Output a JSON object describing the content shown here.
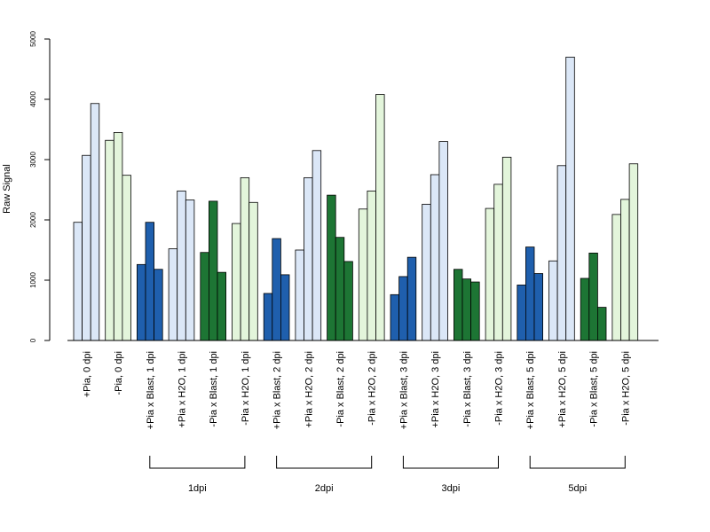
{
  "chart_data": {
    "type": "bar",
    "ylabel": "Raw Signal",
    "ylim": [
      0,
      5000
    ],
    "yticks": [
      0,
      1000,
      2000,
      3000,
      4000,
      5000
    ],
    "categories": [
      "+Pia, 0 dpi",
      "-Pia, 0 dpi",
      "+Pia x Blast, 1 dpi",
      "+Pia x H2O, 1 dpi",
      "-Pia x Blast, 1 dpi",
      "-Pia x H2O, 1 dpi",
      "+Pia x Blast, 2 dpi",
      "+Pia x H2O, 2 dpi",
      "-Pia x Blast, 2 dpi",
      "-Pia x H2O, 2 dpi",
      "+Pia x Blast, 3 dpi",
      "+Pia x H2O, 3 dpi",
      "-Pia x Blast, 3 dpi",
      "-Pia x H2O, 3 dpi",
      "+Pia x Blast, 5 dpi",
      "+Pia x H2O, 5 dpi",
      "-Pia x Blast, 5 dpi",
      "-Pia x H2O, 5 dpi"
    ],
    "category_colors": [
      "#dbe7f7",
      "#e3f5db",
      "#1f5fad",
      "#dbe7f7",
      "#1d7534",
      "#e3f5db",
      "#1f5fad",
      "#dbe7f7",
      "#1d7534",
      "#e3f5db",
      "#1f5fad",
      "#dbe7f7",
      "#1d7534",
      "#e3f5db",
      "#1f5fad",
      "#dbe7f7",
      "#1d7534",
      "#e3f5db"
    ],
    "values": [
      [
        1960,
        3070,
        3930
      ],
      [
        3320,
        3450,
        2740
      ],
      [
        1260,
        1960,
        1180
      ],
      [
        1520,
        2480,
        2330
      ],
      [
        1460,
        2310,
        1130
      ],
      [
        1940,
        2700,
        2290
      ],
      [
        780,
        1690,
        1090
      ],
      [
        1500,
        2700,
        3150
      ],
      [
        2410,
        1710,
        1310
      ],
      [
        2180,
        2480,
        4080
      ],
      [
        760,
        1060,
        1380
      ],
      [
        2260,
        2750,
        3300
      ],
      [
        1180,
        1020,
        970
      ],
      [
        2190,
        2590,
        3040
      ],
      [
        920,
        1550,
        1110
      ],
      [
        1320,
        2900,
        4700
      ],
      [
        1030,
        1450,
        550
      ],
      [
        2090,
        2340,
        2930
      ]
    ],
    "groups": [
      {
        "label": "1dpi",
        "from": 2,
        "to": 5
      },
      {
        "label": "2dpi",
        "from": 6,
        "to": 9
      },
      {
        "label": "3dpi",
        "from": 10,
        "to": 13
      },
      {
        "label": "5dpi",
        "from": 14,
        "to": 17
      }
    ],
    "grid": false,
    "legend": "none"
  }
}
